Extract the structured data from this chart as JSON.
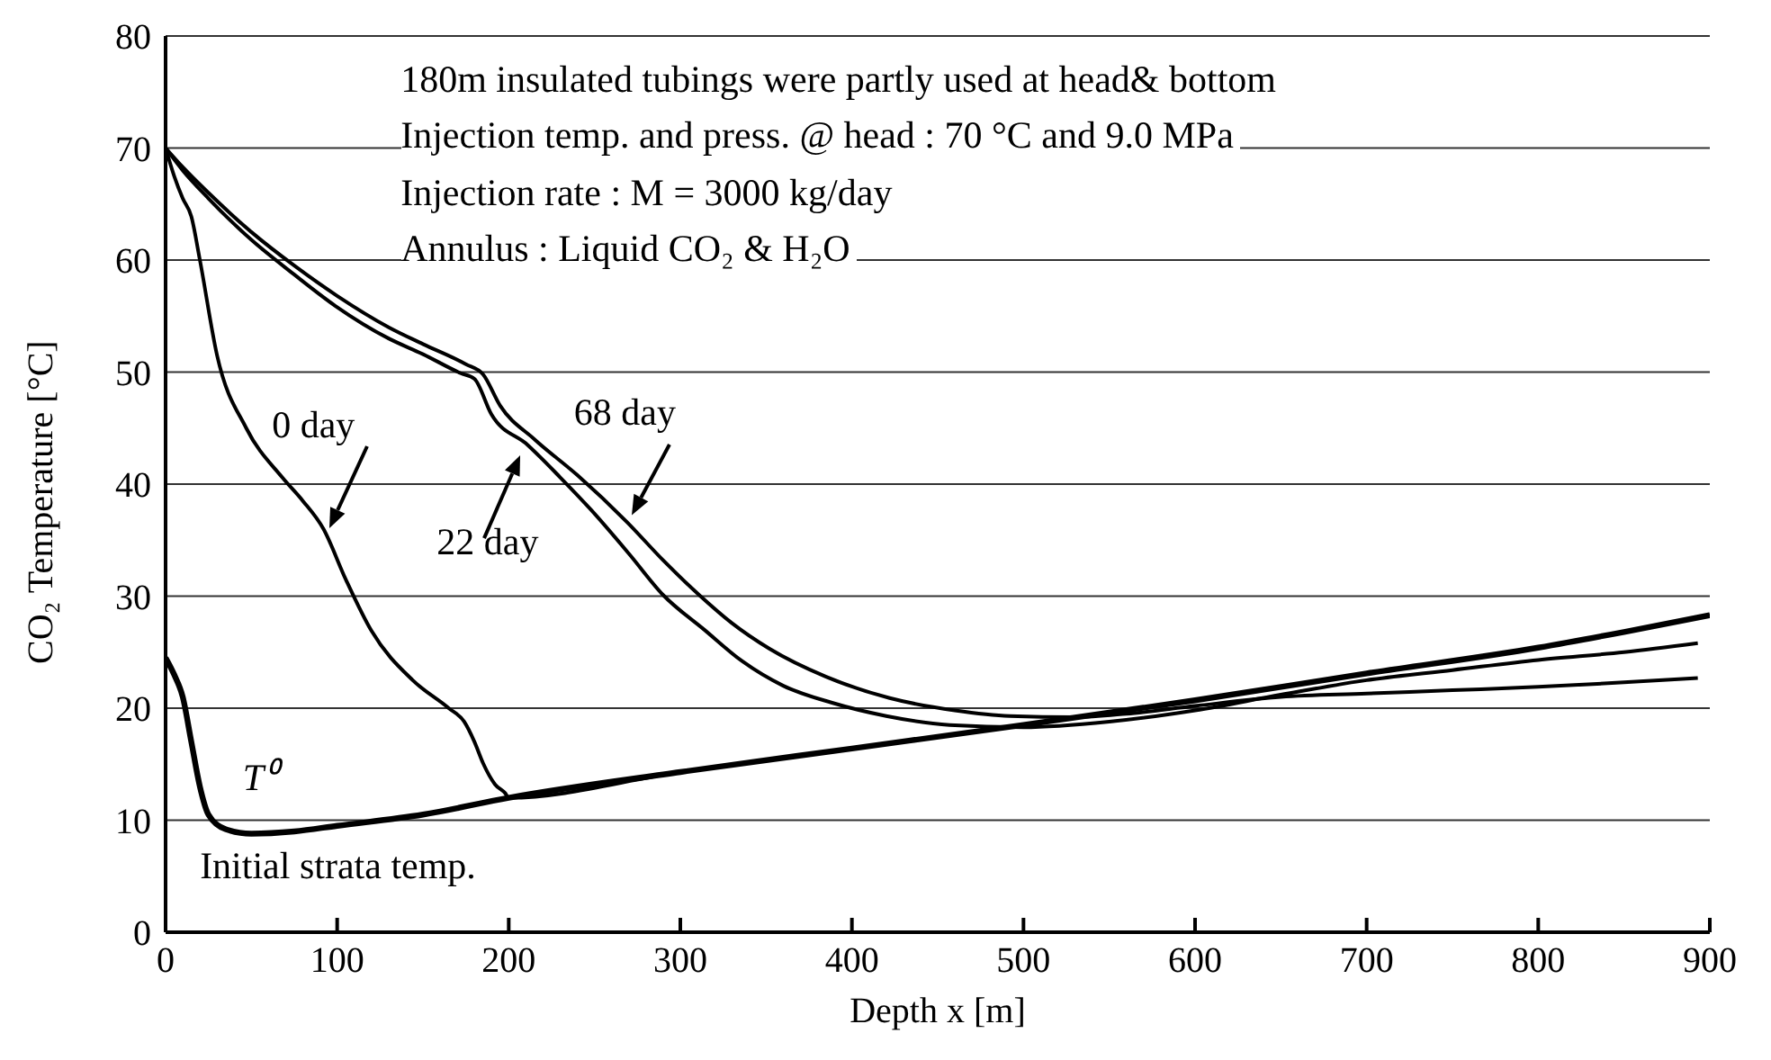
{
  "chart_data": {
    "type": "line",
    "xlabel": "Depth x [m]",
    "ylabel": "CO₂ Temperature [°C]",
    "xlim": [
      0,
      900
    ],
    "xticks": [
      0,
      100,
      200,
      300,
      400,
      500,
      600,
      700,
      800,
      900
    ],
    "ylim": [
      0,
      80
    ],
    "yticks": [
      0,
      10,
      20,
      30,
      40,
      50,
      60,
      70,
      80
    ],
    "grid": "y",
    "marker": "none",
    "line_style": "solid",
    "annotations": [
      "180m insulated tubings were partly used at head& bottom",
      "Injection temp. and press. @ head : 70 °C and 9.0 MPa",
      "Injection rate : M = 3000 kg/day",
      "Annulus : Liquid CO₂ & H₂O",
      "Initial strata temp."
    ],
    "series": [
      {
        "name": "T⁰",
        "color": "#000000",
        "x": [
          0,
          5,
          10,
          15,
          20,
          25,
          35,
          50,
          75,
          100,
          150,
          200,
          300,
          400,
          500,
          600,
          700,
          800,
          850,
          900
        ],
        "values": [
          24.5,
          23,
          21,
          17,
          13,
          10.5,
          9.2,
          8.8,
          9,
          9.5,
          10.5,
          12,
          14.3,
          16.4,
          18.5,
          20.7,
          23.1,
          25.4,
          26.8,
          28.3
        ]
      },
      {
        "name": "0 day",
        "color": "#000000",
        "x": [
          0,
          5,
          10,
          15,
          20,
          30,
          47,
          68,
          80,
          92,
          105,
          120,
          144,
          165,
          174,
          180,
          185,
          192,
          198,
          200,
          300,
          400,
          500,
          600,
          700,
          800,
          850,
          900
        ],
        "values": [
          70,
          67.5,
          65.5,
          63.9,
          60,
          51.5,
          45,
          40.6,
          38.5,
          36,
          31.5,
          26.9,
          22.5,
          20,
          18.8,
          17,
          15.1,
          13.2,
          12.4,
          12,
          14.3,
          16.4,
          18.5,
          20.7,
          23.1,
          25.4,
          26.8,
          28.3
        ]
      },
      {
        "name": "22 day",
        "color": "#000000",
        "x": [
          0,
          10,
          25,
          50,
          75,
          99,
          130,
          150,
          172,
          180,
          190,
          211,
          230,
          248,
          270,
          290,
          314,
          336,
          360,
          388,
          420,
          457,
          500,
          550,
          600,
          650,
          700,
          750,
          800,
          850,
          893
        ],
        "values": [
          70,
          68,
          65.5,
          61.8,
          58.7,
          55.9,
          53,
          51.6,
          49.9,
          49.4,
          46.2,
          43.5,
          40.6,
          37.7,
          33.8,
          30.1,
          27,
          24.2,
          22,
          20.5,
          19.3,
          18.5,
          18.3,
          18.8,
          19.8,
          21.2,
          22.5,
          23.4,
          24.3,
          25,
          25.8
        ]
      },
      {
        "name": "68 day",
        "color": "#000000",
        "x": [
          0,
          10,
          25,
          50,
          75,
          100,
          130,
          150,
          175,
          185,
          195,
          215,
          240,
          269,
          290,
          311,
          330,
          352,
          385,
          422,
          460,
          492,
          530,
          560,
          600,
          650,
          700,
          750,
          800,
          850,
          893
        ],
        "values": [
          70,
          68.3,
          66,
          62.5,
          59.5,
          56.8,
          54,
          52.5,
          50.7,
          49.8,
          47,
          44,
          40.8,
          36.6,
          33.2,
          30.1,
          27.6,
          25.3,
          22.8,
          20.9,
          19.8,
          19.3,
          19.2,
          19.5,
          20.2,
          21,
          21.3,
          21.6,
          21.9,
          22.3,
          22.7
        ]
      }
    ]
  }
}
